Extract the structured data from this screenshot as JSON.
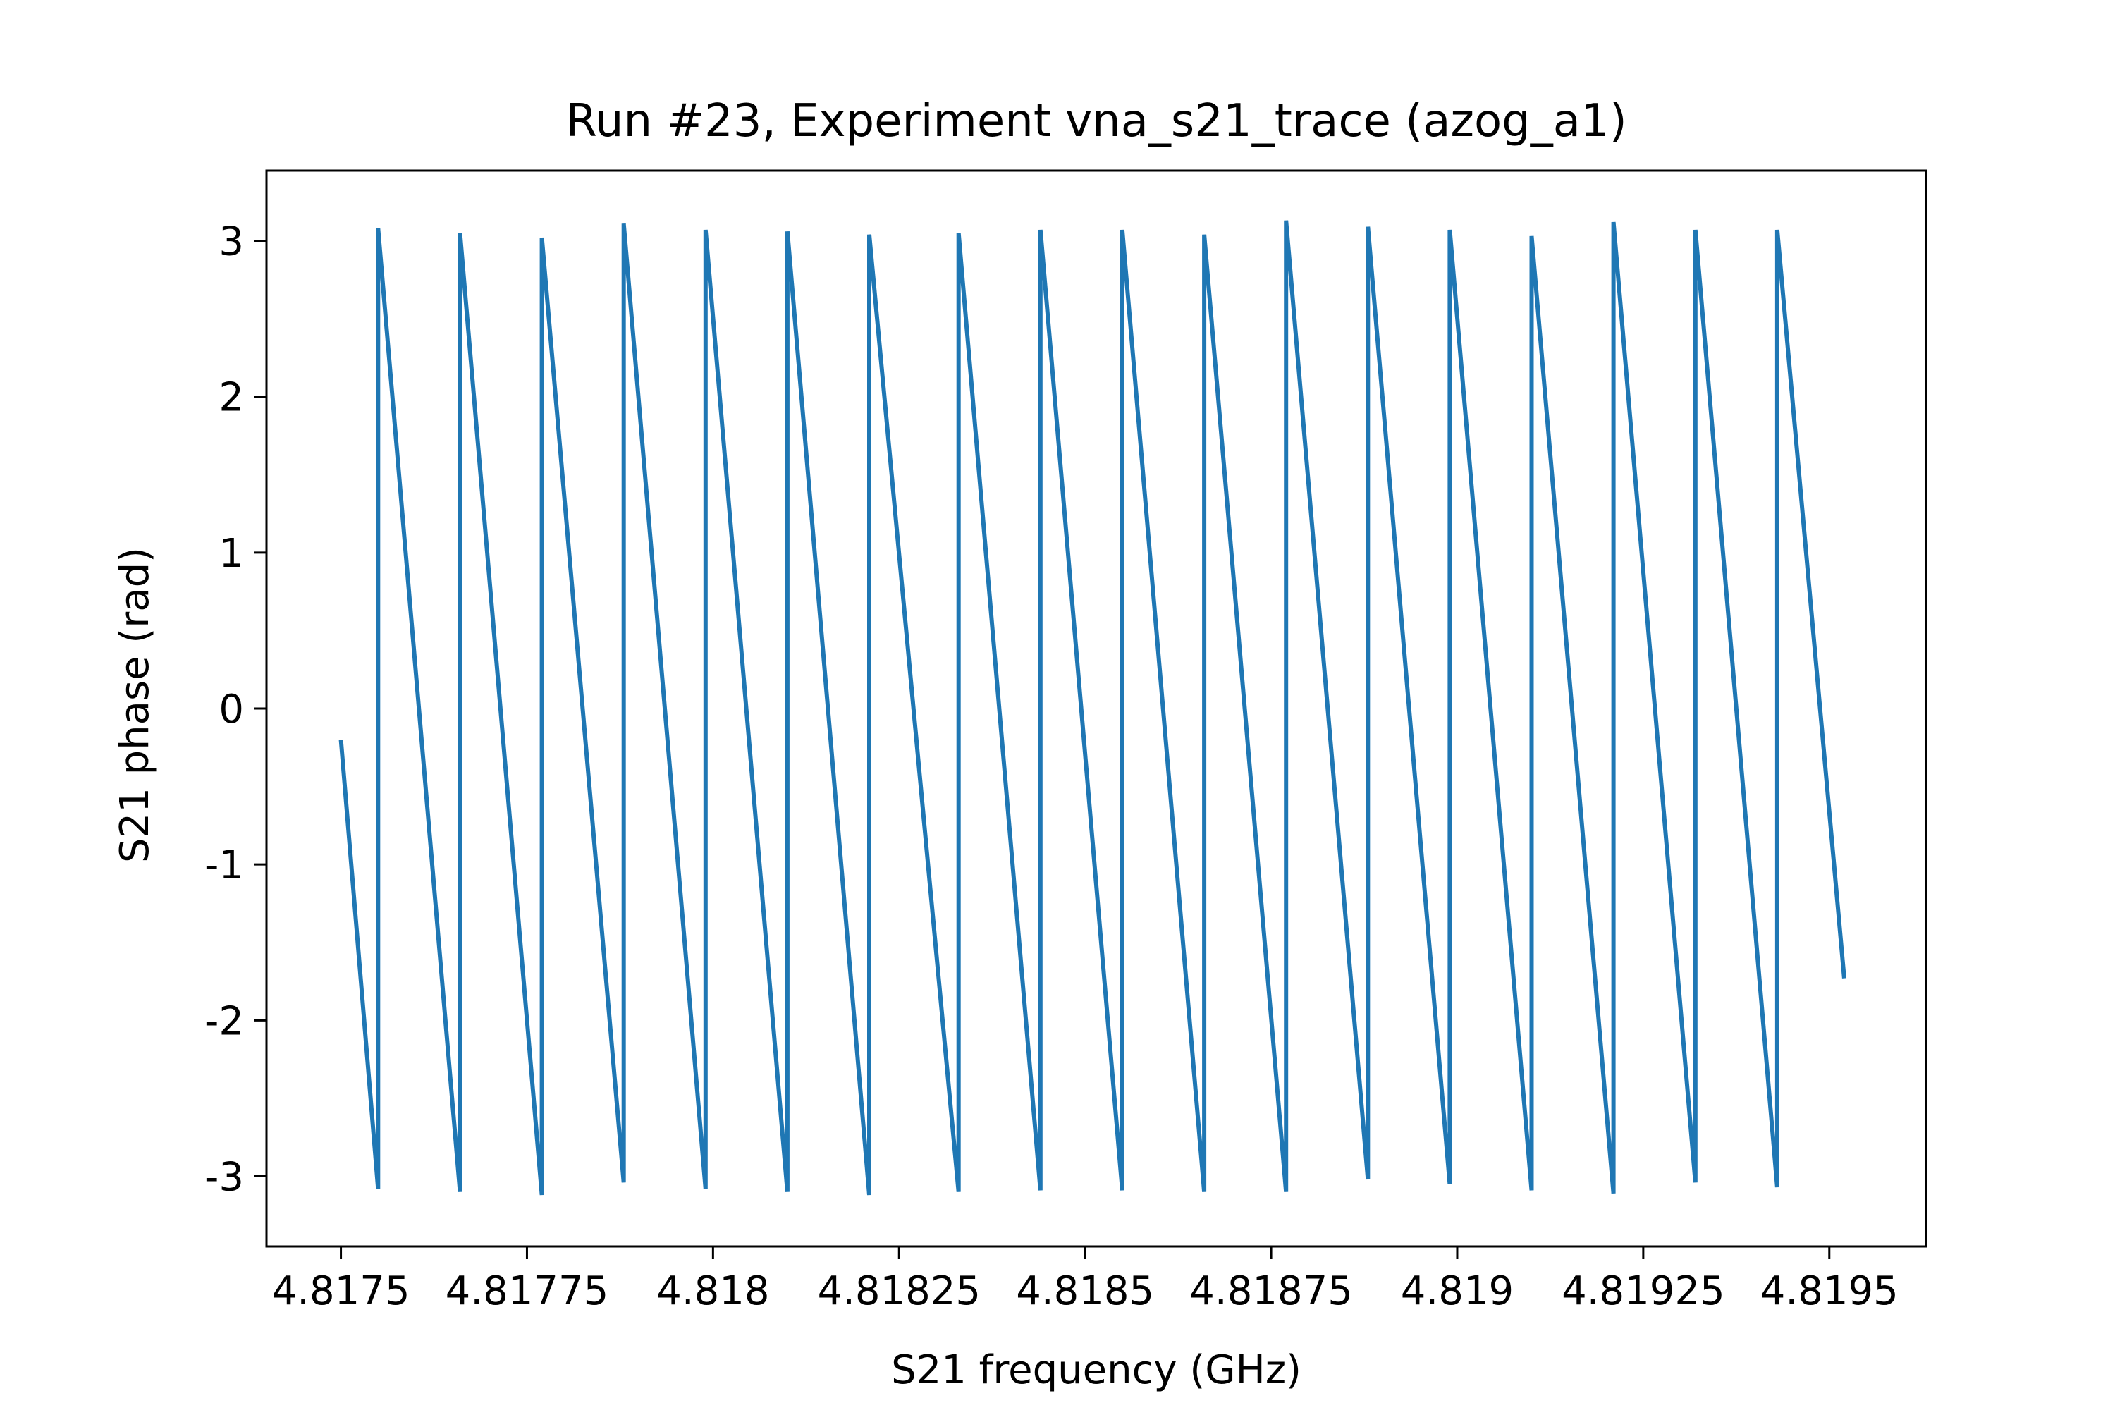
{
  "chart_data": {
    "type": "line",
    "title": "Run #23, Experiment vna_s21_trace (azog_a1)",
    "xlabel": "S21 frequency (GHz)",
    "ylabel": "S21 phase (rad)",
    "xlim": [
      4.8174,
      4.81963
    ],
    "ylim": [
      -3.45,
      3.45
    ],
    "grid": false,
    "legend": "none",
    "x_ticks": [
      {
        "value": 4.8175,
        "label": "4.8175"
      },
      {
        "value": 4.81775,
        "label": "4.81775"
      },
      {
        "value": 4.818,
        "label": "4.818"
      },
      {
        "value": 4.81825,
        "label": "4.81825"
      },
      {
        "value": 4.8185,
        "label": "4.8185"
      },
      {
        "value": 4.81875,
        "label": "4.81875"
      },
      {
        "value": 4.819,
        "label": "4.819"
      },
      {
        "value": 4.81925,
        "label": "4.81925"
      },
      {
        "value": 4.8195,
        "label": "4.8195"
      }
    ],
    "y_ticks": [
      {
        "value": 3,
        "label": "3"
      },
      {
        "value": 2,
        "label": "2"
      },
      {
        "value": 1,
        "label": "1"
      },
      {
        "value": 0,
        "label": "0"
      },
      {
        "value": -1,
        "label": "-1"
      },
      {
        "value": -2,
        "label": "-2"
      },
      {
        "value": -3,
        "label": "-3"
      }
    ],
    "series": [
      {
        "color": "#1f77b4",
        "x": [
          4.8175,
          4.81755,
          4.81755,
          4.81766,
          4.81766,
          4.81777,
          4.81777,
          4.81788,
          4.81788,
          4.81799,
          4.81799,
          4.8181,
          4.8181,
          4.81821,
          4.81821,
          4.81833,
          4.81833,
          4.81844,
          4.81844,
          4.81855,
          4.81855,
          4.81866,
          4.81866,
          4.81877,
          4.81877,
          4.81888,
          4.81888,
          4.81899,
          4.81899,
          4.8191,
          4.8191,
          4.81921,
          4.81921,
          4.81932,
          4.81932,
          4.81943,
          4.81943,
          4.81952
        ],
        "y": [
          -0.2,
          -3.08,
          3.08,
          -3.1,
          3.05,
          -3.12,
          3.02,
          -3.04,
          3.11,
          -3.08,
          3.07,
          -3.1,
          3.06,
          -3.12,
          3.04,
          -3.1,
          3.05,
          -3.09,
          3.07,
          -3.09,
          3.07,
          -3.1,
          3.04,
          -3.1,
          3.13,
          -3.02,
          3.09,
          -3.05,
          3.07,
          -3.09,
          3.03,
          -3.11,
          3.12,
          -3.04,
          3.07,
          -3.07,
          3.07,
          -1.73
        ]
      }
    ]
  }
}
